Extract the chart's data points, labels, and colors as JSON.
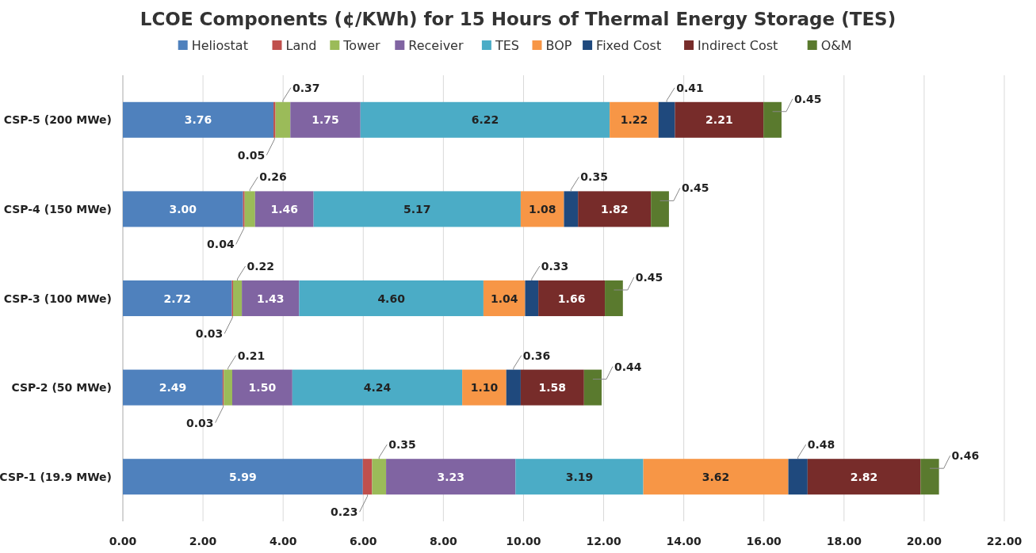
{
  "chart_data": {
    "type": "bar",
    "orientation": "horizontal",
    "stacked": true,
    "title": "LCOE  Components (¢/KWh) for 15 Hours of Thermal Energy Storage (TES)",
    "categories": [
      "CSP-5 (200 MWe)",
      "CSP-4 (150 MWe)",
      "CSP-3 (100 MWe)",
      "CSP-2 (50 MWe)",
      "CSP-1 (19.9 MWe)"
    ],
    "series": [
      {
        "name": "Heliostat",
        "color": "#4f81bd",
        "values": [
          3.76,
          3.0,
          2.72,
          2.49,
          5.99
        ],
        "value_labels": [
          "3.76",
          "3.00",
          "2.72",
          "2.49",
          "5.99"
        ]
      },
      {
        "name": "Land",
        "color": "#c0504d",
        "values": [
          0.05,
          0.04,
          0.03,
          0.03,
          0.23
        ],
        "value_labels": [
          "0.05",
          "0.04",
          "0.03",
          "0.03",
          "0.23"
        ]
      },
      {
        "name": "Tower",
        "color": "#9bbb59",
        "values": [
          0.37,
          0.26,
          0.22,
          0.21,
          0.35
        ],
        "value_labels": [
          "0.37",
          "0.26",
          "0.22",
          "0.21",
          "0.35"
        ]
      },
      {
        "name": "Receiver",
        "color": "#8064a2",
        "values": [
          1.75,
          1.46,
          1.43,
          1.5,
          3.23
        ],
        "value_labels": [
          "1.75",
          "1.46",
          "1.43",
          "1.50",
          "3.23"
        ]
      },
      {
        "name": "TES",
        "color": "#4bacc6",
        "values": [
          6.22,
          5.17,
          4.6,
          4.24,
          3.19
        ],
        "value_labels": [
          "6.22",
          "5.17",
          "4.60",
          "4.24",
          "3.19"
        ]
      },
      {
        "name": "BOP",
        "color": "#f79646",
        "values": [
          1.22,
          1.08,
          1.04,
          1.1,
          3.62
        ],
        "value_labels": [
          "1.22",
          "1.08",
          "1.04",
          "1.10",
          "3.62"
        ]
      },
      {
        "name": "Fixed Cost",
        "color": "#1f497d",
        "values": [
          0.41,
          0.35,
          0.33,
          0.36,
          0.48
        ],
        "value_labels": [
          "0.41",
          "0.35",
          "0.33",
          "0.36",
          "0.48"
        ]
      },
      {
        "name": "Indirect Cost",
        "color": "#772c2a",
        "values": [
          2.21,
          1.82,
          1.66,
          1.58,
          2.82
        ],
        "value_labels": [
          "2.21",
          "1.82",
          "1.66",
          "1.58",
          "2.82"
        ]
      },
      {
        "name": "O&M",
        "color": "#5a7a2e",
        "values": [
          0.45,
          0.45,
          0.45,
          0.44,
          0.46
        ],
        "value_labels": [
          "0.45",
          "0.45",
          "0.45",
          "0.44",
          "0.46"
        ]
      }
    ],
    "xlim": [
      0,
      22
    ],
    "xticks": [
      {
        "value": 0,
        "label": "0.00"
      },
      {
        "value": 2,
        "label": "2.00"
      },
      {
        "value": 4,
        "label": "4.00"
      },
      {
        "value": 6,
        "label": "6.00"
      },
      {
        "value": 8,
        "label": "8.00"
      },
      {
        "value": 10,
        "label": "10.00"
      },
      {
        "value": 12,
        "label": "12.00"
      },
      {
        "value": 14,
        "label": "14.00"
      },
      {
        "value": 16,
        "label": "16.00"
      },
      {
        "value": 18,
        "label": "18.00"
      },
      {
        "value": 20,
        "label": "20.00"
      },
      {
        "value": 22,
        "label": "22.00"
      }
    ],
    "grid": "x",
    "legend": "top"
  }
}
